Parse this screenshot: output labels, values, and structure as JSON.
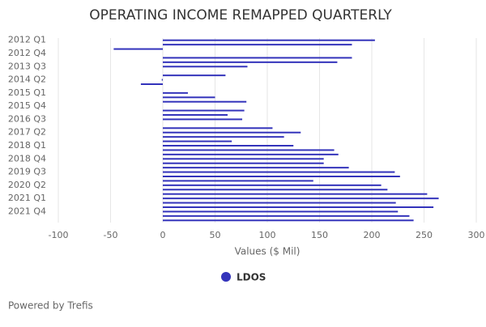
{
  "chart_data": {
    "type": "bar",
    "orientation": "horizontal",
    "title": "OPERATING INCOME REMAPPED QUARTERLY",
    "x_label": "Values ($ Mil)",
    "categories": [
      "2012 Q1",
      null,
      null,
      "2012 Q4",
      null,
      null,
      "2013 Q3",
      null,
      null,
      "2014 Q2",
      null,
      null,
      "2015 Q1",
      null,
      null,
      "2015 Q4",
      null,
      null,
      "2016 Q3",
      null,
      null,
      "2017 Q2",
      null,
      null,
      "2018 Q1",
      null,
      null,
      "2018 Q4",
      null,
      null,
      "2019 Q3",
      null,
      null,
      "2020 Q2",
      null,
      null,
      "2021 Q1",
      null,
      null,
      "2021 Q4",
      null,
      null
    ],
    "series": [
      {
        "name": "LDOS",
        "color": "#3333bb",
        "values": [
          203,
          181,
          -47,
          0,
          181,
          167,
          81,
          0,
          60,
          -1,
          -21,
          0,
          24,
          50,
          80,
          0,
          78,
          62,
          76,
          0,
          105,
          132,
          116,
          66,
          125,
          164,
          168,
          154,
          154,
          178,
          222,
          227,
          144,
          209,
          215,
          253,
          264,
          223,
          259,
          225,
          236,
          240
        ]
      }
    ],
    "xlim": [
      -100,
      300
    ],
    "xticks": [
      -100,
      -50,
      0,
      50,
      100,
      150,
      200,
      250,
      300
    ],
    "grid": true,
    "footer": "Powered by Trefis"
  }
}
